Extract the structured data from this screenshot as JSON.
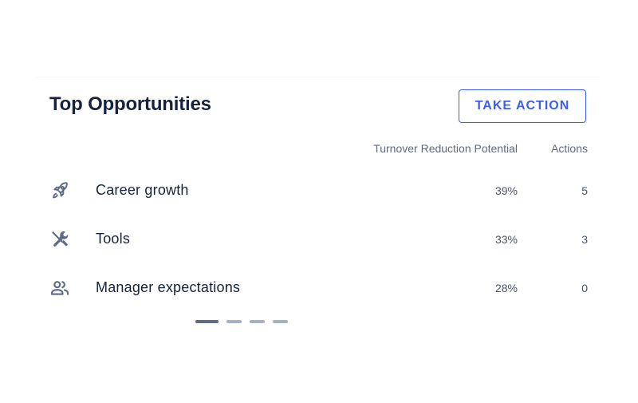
{
  "card": {
    "title": "Top Opportunities",
    "action_label": "TAKE ACTION",
    "columns": {
      "potential": "Turnover Reduction Potential",
      "actions": "Actions"
    },
    "rows": [
      {
        "icon": "rocket-icon",
        "label": "Career growth",
        "potential": "39%",
        "actions": "5"
      },
      {
        "icon": "tools-icon",
        "label": "Tools",
        "potential": "33%",
        "actions": "3"
      },
      {
        "icon": "people-icon",
        "label": "Manager expectations",
        "potential": "28%",
        "actions": "0"
      }
    ],
    "pager": {
      "total": 4,
      "active_index": 0
    }
  },
  "colors": {
    "accent": "#3d5cf5",
    "heading": "#17233d",
    "muted": "#5f6b82",
    "icon": "#5e6b85",
    "pager_inactive": "#a6b0c3"
  }
}
